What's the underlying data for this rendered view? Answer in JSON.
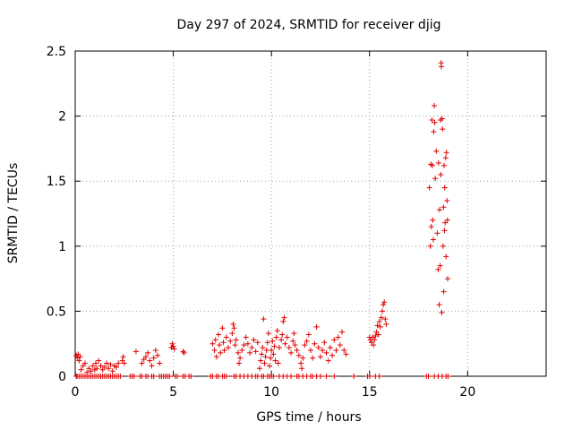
{
  "chart_data": {
    "type": "scatter",
    "title": "Day 297 of 2024, SRMTID for receiver djig",
    "xlabel": "GPS time / hours",
    "ylabel": "SRMTID / TECUs",
    "xlim": [
      0,
      24
    ],
    "ylim": [
      0,
      2.5
    ],
    "xticks": [
      0,
      5,
      10,
      15,
      20
    ],
    "yticks": [
      0,
      0.5,
      1,
      1.5,
      2,
      2.5
    ],
    "xtick_labels": [
      "0",
      "5",
      "10",
      "15",
      "20"
    ],
    "ytick_labels": [
      "0",
      "0.5",
      "1",
      "1.5",
      "2",
      "2.5"
    ],
    "grid": true,
    "marker": "+",
    "color": "#e00000",
    "series": [
      {
        "name": "SRMTID",
        "points": [
          [
            0.05,
            0.16
          ],
          [
            0.1,
            0.14
          ],
          [
            0.15,
            0.17
          ],
          [
            0.2,
            0.12
          ],
          [
            0.25,
            0.15
          ],
          [
            0.3,
            0.05
          ],
          [
            0.4,
            0.08
          ],
          [
            0.5,
            0.1
          ],
          [
            0.6,
            0.03
          ],
          [
            0.7,
            0.06
          ],
          [
            0.8,
            0.04
          ],
          [
            0.9,
            0.08
          ],
          [
            1.0,
            0.05
          ],
          [
            1.05,
            0.1
          ],
          [
            1.1,
            0.06
          ],
          [
            1.2,
            0.12
          ],
          [
            1.3,
            0.08
          ],
          [
            1.4,
            0.05
          ],
          [
            1.5,
            0.07
          ],
          [
            1.6,
            0.1
          ],
          [
            1.7,
            0.06
          ],
          [
            1.8,
            0.09
          ],
          [
            1.9,
            0.04
          ],
          [
            2.0,
            0.08
          ],
          [
            2.1,
            0.07
          ],
          [
            2.2,
            0.1
          ],
          [
            2.4,
            0.12
          ],
          [
            2.45,
            0.15
          ],
          [
            2.5,
            0.1
          ],
          [
            3.1,
            0.19
          ],
          [
            3.4,
            0.1
          ],
          [
            3.5,
            0.13
          ],
          [
            3.6,
            0.15
          ],
          [
            3.7,
            0.18
          ],
          [
            3.8,
            0.12
          ],
          [
            3.9,
            0.08
          ],
          [
            4.0,
            0.14
          ],
          [
            4.1,
            0.2
          ],
          [
            4.2,
            0.16
          ],
          [
            4.3,
            0.1
          ],
          [
            4.9,
            0.22
          ],
          [
            4.95,
            0.25
          ],
          [
            5.0,
            0.23
          ],
          [
            5.05,
            0.21
          ],
          [
            5.5,
            0.19
          ],
          [
            5.55,
            0.18
          ],
          [
            7.0,
            0.25
          ],
          [
            7.1,
            0.2
          ],
          [
            7.15,
            0.28
          ],
          [
            7.2,
            0.15
          ],
          [
            7.3,
            0.32
          ],
          [
            7.35,
            0.24
          ],
          [
            7.4,
            0.18
          ],
          [
            7.5,
            0.37
          ],
          [
            7.55,
            0.26
          ],
          [
            7.6,
            0.2
          ],
          [
            7.7,
            0.3
          ],
          [
            7.8,
            0.22
          ],
          [
            7.9,
            0.27
          ],
          [
            8.0,
            0.33
          ],
          [
            8.05,
            0.4
          ],
          [
            8.1,
            0.37
          ],
          [
            8.15,
            0.24
          ],
          [
            8.2,
            0.28
          ],
          [
            8.3,
            0.18
          ],
          [
            8.35,
            0.1
          ],
          [
            8.4,
            0.14
          ],
          [
            8.5,
            0.2
          ],
          [
            8.6,
            0.24
          ],
          [
            8.7,
            0.3
          ],
          [
            8.8,
            0.25
          ],
          [
            8.9,
            0.18
          ],
          [
            9.0,
            0.22
          ],
          [
            9.1,
            0.28
          ],
          [
            9.2,
            0.19
          ],
          [
            9.3,
            0.26
          ],
          [
            9.4,
            0.06
          ],
          [
            9.45,
            0.12
          ],
          [
            9.5,
            0.17
          ],
          [
            9.55,
            0.22
          ],
          [
            9.6,
            0.44
          ],
          [
            9.65,
            0.1
          ],
          [
            9.7,
            0.15
          ],
          [
            9.75,
            0.2
          ],
          [
            9.8,
            0.26
          ],
          [
            9.85,
            0.33
          ],
          [
            9.9,
            0.08
          ],
          [
            9.95,
            0.14
          ],
          [
            10.0,
            0.2
          ],
          [
            10.05,
            0.27
          ],
          [
            10.1,
            0.17
          ],
          [
            10.15,
            0.23
          ],
          [
            10.2,
            0.12
          ],
          [
            10.25,
            0.3
          ],
          [
            10.3,
            0.35
          ],
          [
            10.35,
            0.1
          ],
          [
            10.4,
            0.22
          ],
          [
            10.5,
            0.28
          ],
          [
            10.55,
            0.32
          ],
          [
            10.6,
            0.42
          ],
          [
            10.65,
            0.45
          ],
          [
            10.7,
            0.25
          ],
          [
            10.8,
            0.3
          ],
          [
            10.9,
            0.22
          ],
          [
            11.0,
            0.18
          ],
          [
            11.1,
            0.27
          ],
          [
            11.15,
            0.33
          ],
          [
            11.2,
            0.24
          ],
          [
            11.3,
            0.2
          ],
          [
            11.4,
            0.16
          ],
          [
            11.5,
            0.1
          ],
          [
            11.55,
            0.06
          ],
          [
            11.6,
            0.14
          ],
          [
            11.7,
            0.24
          ],
          [
            11.8,
            0.27
          ],
          [
            11.9,
            0.32
          ],
          [
            12.0,
            0.2
          ],
          [
            12.1,
            0.14
          ],
          [
            12.2,
            0.25
          ],
          [
            12.3,
            0.38
          ],
          [
            12.4,
            0.22
          ],
          [
            12.5,
            0.15
          ],
          [
            12.6,
            0.2
          ],
          [
            12.7,
            0.26
          ],
          [
            12.8,
            0.18
          ],
          [
            12.9,
            0.12
          ],
          [
            13.0,
            0.22
          ],
          [
            13.1,
            0.16
          ],
          [
            13.2,
            0.28
          ],
          [
            13.3,
            0.2
          ],
          [
            13.4,
            0.3
          ],
          [
            13.5,
            0.24
          ],
          [
            13.6,
            0.34
          ],
          [
            13.7,
            0.2
          ],
          [
            13.8,
            0.17
          ],
          [
            15.0,
            0.3
          ],
          [
            15.05,
            0.28
          ],
          [
            15.1,
            0.26
          ],
          [
            15.15,
            0.3
          ],
          [
            15.2,
            0.24
          ],
          [
            15.25,
            0.28
          ],
          [
            15.3,
            0.31
          ],
          [
            15.35,
            0.34
          ],
          [
            15.4,
            0.39
          ],
          [
            15.45,
            0.32
          ],
          [
            15.5,
            0.42
          ],
          [
            15.55,
            0.38
          ],
          [
            15.6,
            0.45
          ],
          [
            15.65,
            0.5
          ],
          [
            15.7,
            0.55
          ],
          [
            15.75,
            0.57
          ],
          [
            15.8,
            0.44
          ],
          [
            15.85,
            0.4
          ],
          [
            18.05,
            1.45
          ],
          [
            18.1,
            1.0
          ],
          [
            18.12,
            1.63
          ],
          [
            18.15,
            1.15
          ],
          [
            18.18,
            1.97
          ],
          [
            18.2,
            1.62
          ],
          [
            18.22,
            1.2
          ],
          [
            18.25,
            1.05
          ],
          [
            18.27,
            1.88
          ],
          [
            18.3,
            2.08
          ],
          [
            18.32,
            1.95
          ],
          [
            18.35,
            1.52
          ],
          [
            18.4,
            1.73
          ],
          [
            18.45,
            1.1
          ],
          [
            18.5,
            0.82
          ],
          [
            18.52,
            1.64
          ],
          [
            18.55,
            0.55
          ],
          [
            18.57,
            1.28
          ],
          [
            18.6,
            0.85
          ],
          [
            18.62,
            1.97
          ],
          [
            18.63,
            1.55
          ],
          [
            18.65,
            2.41
          ],
          [
            18.66,
            2.38
          ],
          [
            18.68,
            0.49
          ],
          [
            18.7,
            1.98
          ],
          [
            18.72,
            1.9
          ],
          [
            18.75,
            1.0
          ],
          [
            18.77,
            1.3
          ],
          [
            18.78,
            0.65
          ],
          [
            18.8,
            1.62
          ],
          [
            18.82,
            1.12
          ],
          [
            18.83,
            1.45
          ],
          [
            18.85,
            1.18
          ],
          [
            18.88,
            1.68
          ],
          [
            18.9,
            0.92
          ],
          [
            18.92,
            1.72
          ],
          [
            18.95,
            1.35
          ],
          [
            18.97,
            1.2
          ],
          [
            18.98,
            0.75
          ]
        ],
        "zero_x": [
          0.05,
          0.1,
          0.2,
          0.3,
          0.4,
          0.5,
          0.6,
          0.7,
          0.8,
          0.9,
          1.0,
          1.1,
          1.2,
          1.3,
          1.4,
          1.5,
          1.6,
          1.7,
          1.8,
          1.9,
          2.0,
          2.1,
          2.2,
          2.3,
          2.8,
          2.9,
          3.0,
          3.3,
          3.4,
          3.6,
          3.7,
          3.9,
          4.0,
          4.3,
          4.4,
          4.5,
          4.6,
          4.7,
          4.8,
          5.1,
          5.2,
          5.5,
          5.6,
          5.8,
          5.9,
          6.9,
          7.0,
          7.2,
          7.3,
          7.5,
          7.6,
          7.7,
          8.1,
          8.2,
          8.4,
          8.6,
          8.8,
          9.0,
          9.2,
          9.3,
          9.5,
          9.6,
          9.8,
          9.9,
          10.0,
          10.1,
          10.4,
          10.6,
          10.8,
          11.0,
          11.3,
          11.4,
          11.6,
          11.8,
          12.0,
          12.1,
          12.3,
          12.5,
          12.8,
          13.2,
          14.2,
          14.9,
          15.0,
          15.3,
          15.5,
          17.9,
          18.0,
          18.3,
          18.5,
          18.7,
          18.9,
          19.0
        ]
      }
    ]
  }
}
